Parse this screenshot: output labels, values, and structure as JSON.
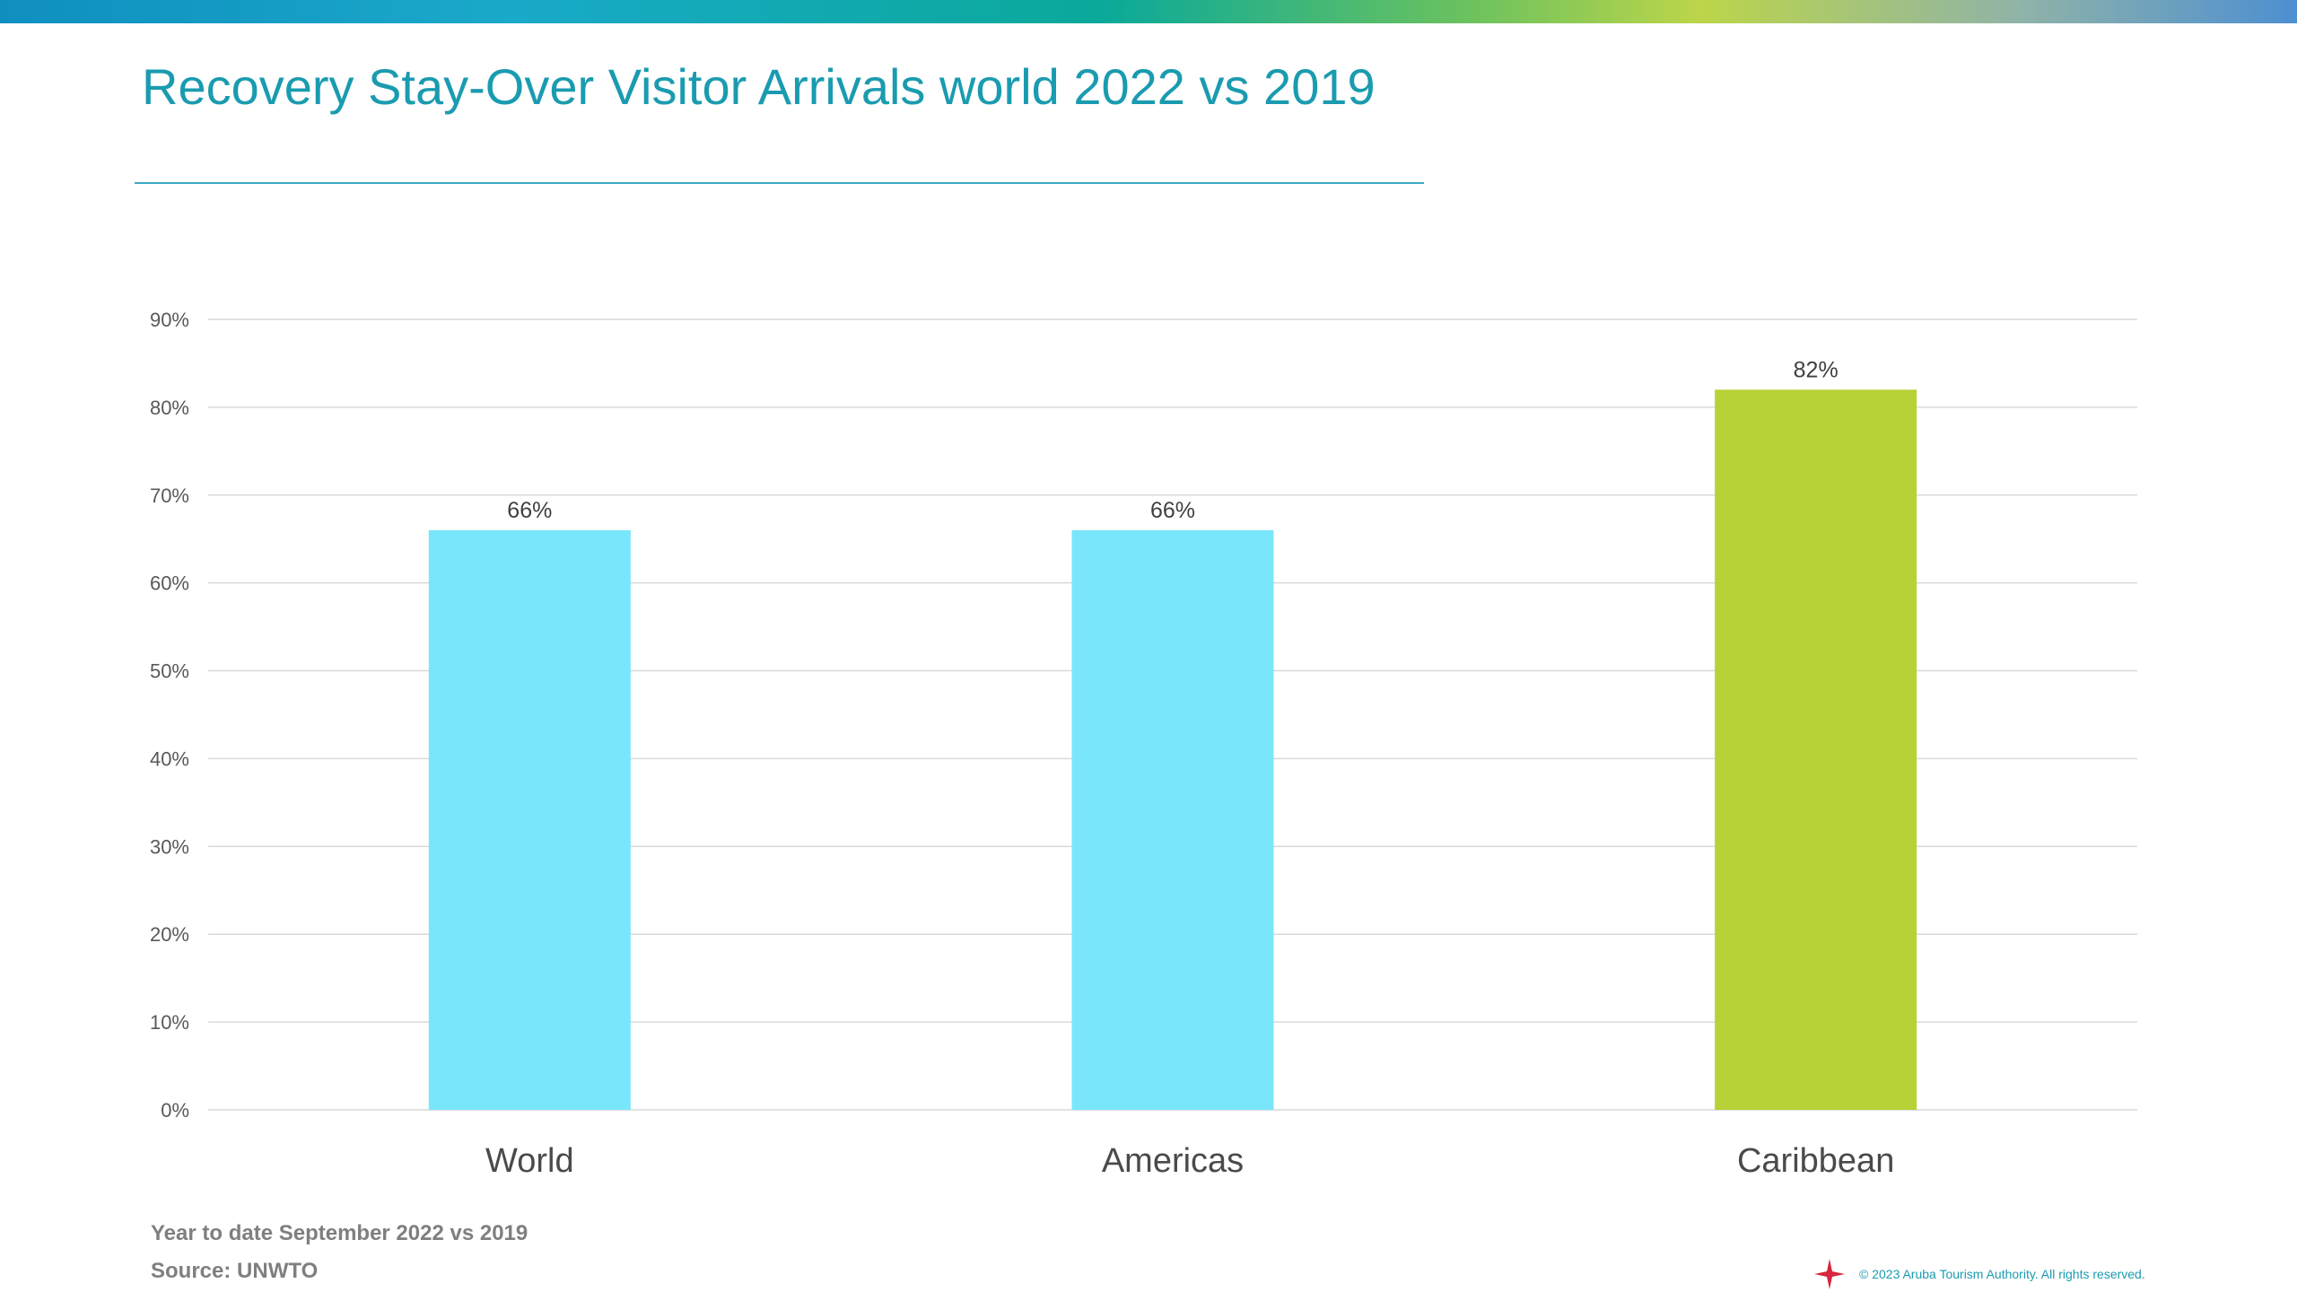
{
  "slide": {
    "title": "Recovery Stay-Over Visitor Arrivals world 2022 vs 2019",
    "footnote_period": "Year to date September 2022 vs 2019",
    "footnote_source": "Source: UNWTO",
    "copyright": "© 2023 Aruba  Tourism Authority.  All rights reserved."
  },
  "colors": {
    "title": "#1a9bb0",
    "bar_default": "#7ae6fc",
    "bar_highlight": "#b6d236",
    "gridline": "#d9d9d9",
    "logo_star": "#d7263d"
  },
  "icons": {
    "logo": "red-compass-star-icon"
  },
  "chart_data": {
    "type": "bar",
    "categories": [
      "World",
      "Americas",
      "Caribbean"
    ],
    "values": [
      66,
      66,
      82
    ],
    "data_labels": [
      "66%",
      "66%",
      "82%"
    ],
    "highlight_category": "Caribbean",
    "title": "",
    "xlabel": "",
    "ylabel": "",
    "ylim": [
      0,
      90
    ],
    "y_ticks": [
      0,
      10,
      20,
      30,
      40,
      50,
      60,
      70,
      80,
      90
    ],
    "y_tick_labels": [
      "0%",
      "10%",
      "20%",
      "30%",
      "40%",
      "50%",
      "60%",
      "70%",
      "80%",
      "90%"
    ],
    "grid": true,
    "legend": "none"
  }
}
